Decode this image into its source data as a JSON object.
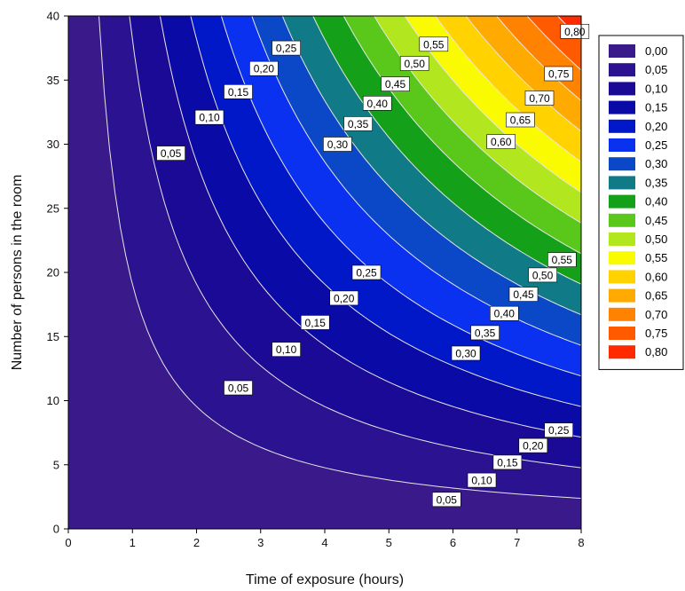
{
  "chart_data": {
    "type": "heatmap",
    "subtype": "filled-contour",
    "title": "",
    "xlabel": "Time of exposure (hours)",
    "ylabel": "Number of persons in the room",
    "xlim": [
      0,
      8
    ],
    "ylim": [
      0,
      40
    ],
    "x_ticks": [
      "0",
      "1",
      "2",
      "3",
      "4",
      "5",
      "6",
      "7",
      "8"
    ],
    "y_ticks": [
      "0",
      "5",
      "10",
      "15",
      "20",
      "25",
      "30",
      "35",
      "40"
    ],
    "grid": false,
    "surface": {
      "form": "z = k * x * y",
      "k": 0.00262
    },
    "contour_line_color": "#e6e6e6",
    "contour_levels": [
      0.05,
      0.1,
      0.15,
      0.2,
      0.25,
      0.3,
      0.35,
      0.4,
      0.45,
      0.5,
      0.55,
      0.6,
      0.65,
      0.7,
      0.75,
      0.8
    ],
    "legend": {
      "position": "right",
      "entries": [
        {
          "label": "0,00",
          "color": "#3a1a8a"
        },
        {
          "label": "0,05",
          "color": "#2a1290"
        },
        {
          "label": "0,10",
          "color": "#1a0a96"
        },
        {
          "label": "0,15",
          "color": "#0a0aa6"
        },
        {
          "label": "0,20",
          "color": "#0018c8"
        },
        {
          "label": "0,25",
          "color": "#0a30f0"
        },
        {
          "label": "0,30",
          "color": "#0a48c8"
        },
        {
          "label": "0,35",
          "color": "#107a86"
        },
        {
          "label": "0,40",
          "color": "#14a018"
        },
        {
          "label": "0,45",
          "color": "#5ac81a"
        },
        {
          "label": "0,50",
          "color": "#b2e61e"
        },
        {
          "label": "0,55",
          "color": "#fafa00"
        },
        {
          "label": "0,60",
          "color": "#ffd200"
        },
        {
          "label": "0,65",
          "color": "#ffaa00"
        },
        {
          "label": "0,70",
          "color": "#ff8200"
        },
        {
          "label": "0,75",
          "color": "#ff5a00"
        },
        {
          "label": "0,80",
          "color": "#ff2a00"
        }
      ]
    },
    "contour_labels": [
      {
        "text": "0,05",
        "x": 1.6,
        "y": 29.3
      },
      {
        "text": "0,10",
        "x": 2.2,
        "y": 32.1
      },
      {
        "text": "0,15",
        "x": 2.65,
        "y": 34.1
      },
      {
        "text": "0,20",
        "x": 3.05,
        "y": 35.9
      },
      {
        "text": "0,25",
        "x": 3.4,
        "y": 37.5
      },
      {
        "text": "0,30",
        "x": 4.2,
        "y": 30.0
      },
      {
        "text": "0,35",
        "x": 4.52,
        "y": 31.6
      },
      {
        "text": "0,40",
        "x": 4.82,
        "y": 33.2
      },
      {
        "text": "0,45",
        "x": 5.1,
        "y": 34.7
      },
      {
        "text": "0,50",
        "x": 5.4,
        "y": 36.3
      },
      {
        "text": "0,55",
        "x": 5.7,
        "y": 37.8
      },
      {
        "text": "0,60",
        "x": 6.75,
        "y": 30.2
      },
      {
        "text": "0,65",
        "x": 7.05,
        "y": 31.9
      },
      {
        "text": "0,70",
        "x": 7.35,
        "y": 33.6
      },
      {
        "text": "0,75",
        "x": 7.65,
        "y": 35.5
      },
      {
        "text": "0,80",
        "x": 7.9,
        "y": 38.8
      },
      {
        "text": "0,05",
        "x": 2.65,
        "y": 11.0
      },
      {
        "text": "0,10",
        "x": 3.4,
        "y": 14.0
      },
      {
        "text": "0,15",
        "x": 3.85,
        "y": 16.1
      },
      {
        "text": "0,20",
        "x": 4.3,
        "y": 18.0
      },
      {
        "text": "0,25",
        "x": 4.65,
        "y": 20.0
      },
      {
        "text": "0,30",
        "x": 6.2,
        "y": 13.7
      },
      {
        "text": "0,35",
        "x": 6.5,
        "y": 15.3
      },
      {
        "text": "0,40",
        "x": 6.8,
        "y": 16.8
      },
      {
        "text": "0,45",
        "x": 7.1,
        "y": 18.3
      },
      {
        "text": "0,50",
        "x": 7.4,
        "y": 19.8
      },
      {
        "text": "0,55",
        "x": 7.7,
        "y": 21.0
      },
      {
        "text": "0,05",
        "x": 5.9,
        "y": 2.3
      },
      {
        "text": "0,10",
        "x": 6.45,
        "y": 3.8
      },
      {
        "text": "0,15",
        "x": 6.85,
        "y": 5.2
      },
      {
        "text": "0,20",
        "x": 7.25,
        "y": 6.5
      },
      {
        "text": "0,25",
        "x": 7.65,
        "y": 7.7
      }
    ]
  }
}
